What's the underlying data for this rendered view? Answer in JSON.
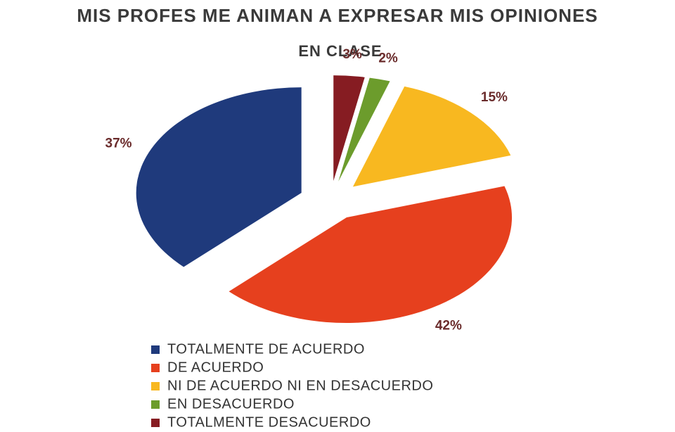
{
  "chart_data": {
    "type": "pie",
    "title": [
      "MIS PROFES ME ANIMAN A EXPRESAR MIS OPINIONES",
      "EN CLASE"
    ],
    "categories": [
      "TOTALMENTE DE ACUERDO",
      "DE ACUERDO",
      "NI DE ACUERDO NI EN DESACUERDO",
      "EN DESACUERDO",
      "TOTALMENTE DESACUERDO"
    ],
    "values": [
      37,
      42,
      15,
      2,
      3
    ],
    "value_labels": [
      "37%",
      "42%",
      "15%",
      "2%",
      "3%"
    ],
    "colors": [
      "#1f3a7c",
      "#e6401e",
      "#f8b820",
      "#6c9c2c",
      "#861c22"
    ],
    "legend": "bottom"
  }
}
